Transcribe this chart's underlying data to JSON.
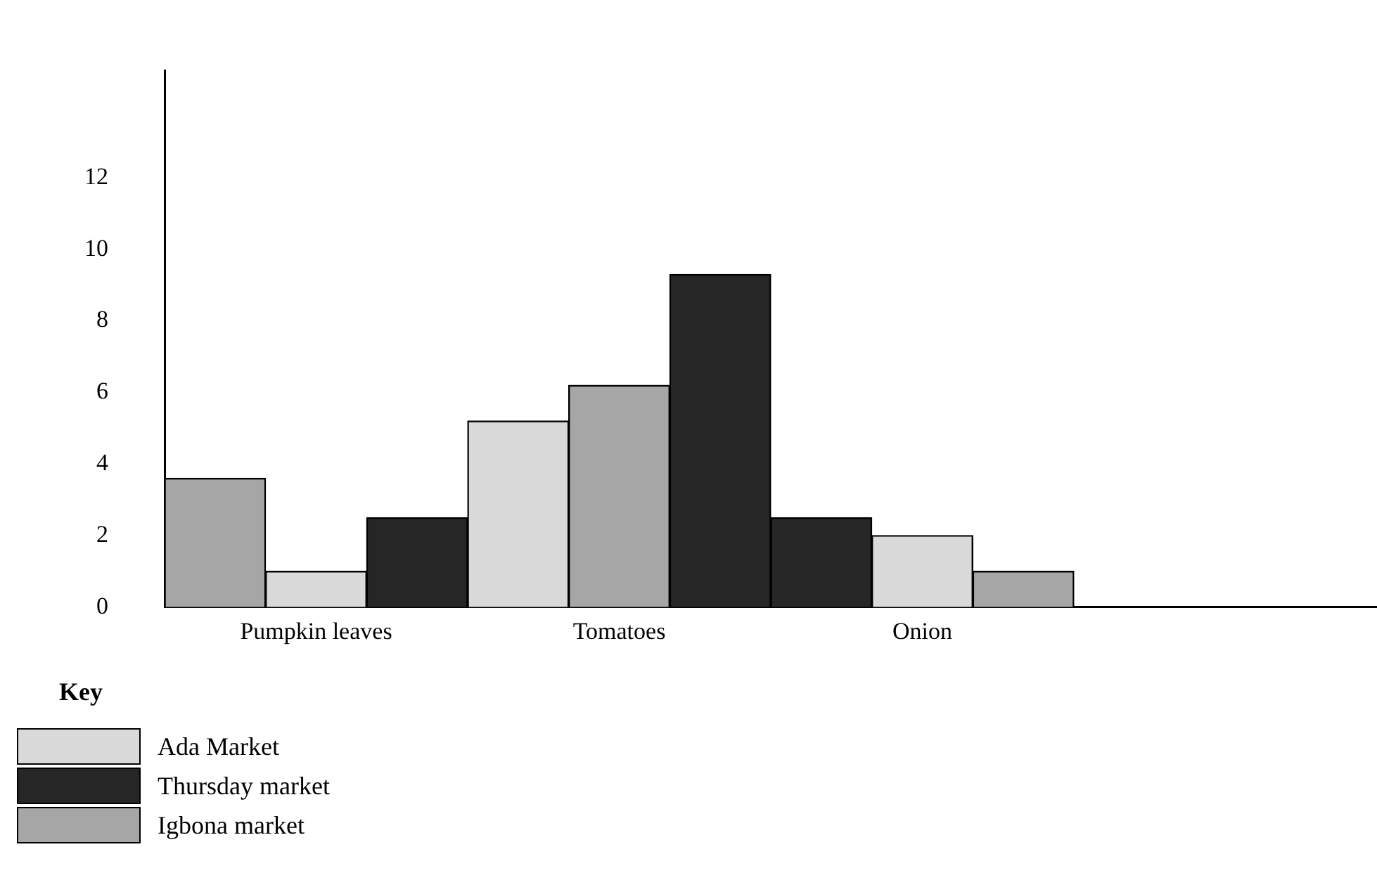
{
  "chart_data": {
    "type": "bar",
    "legend_title": "Key",
    "categories": [
      null,
      "Pumpkin leaves",
      null,
      null,
      "Tomatoes",
      null,
      null,
      "Onion",
      null,
      null,
      null,
      null
    ],
    "series": [
      {
        "name": "Ada Market",
        "color": "#d9d9d9",
        "values": [
          null,
          1,
          null,
          5.2,
          null,
          null,
          null,
          2,
          null,
          null,
          null,
          null
        ]
      },
      {
        "name": "Thursday market",
        "color": "#262626",
        "values": [
          null,
          null,
          2.5,
          null,
          null,
          9.3,
          2.5,
          null,
          null,
          null,
          null,
          null
        ]
      },
      {
        "name": "Igbona market",
        "color": "#a6a6a6",
        "values": [
          3.6,
          null,
          null,
          null,
          6.2,
          null,
          null,
          null,
          1,
          null,
          null,
          null
        ]
      }
    ],
    "ylim": [
      0,
      15
    ],
    "yticks": [
      0,
      2,
      4,
      6,
      8,
      10,
      12
    ],
    "grid": false,
    "legend": "bottom left"
  }
}
